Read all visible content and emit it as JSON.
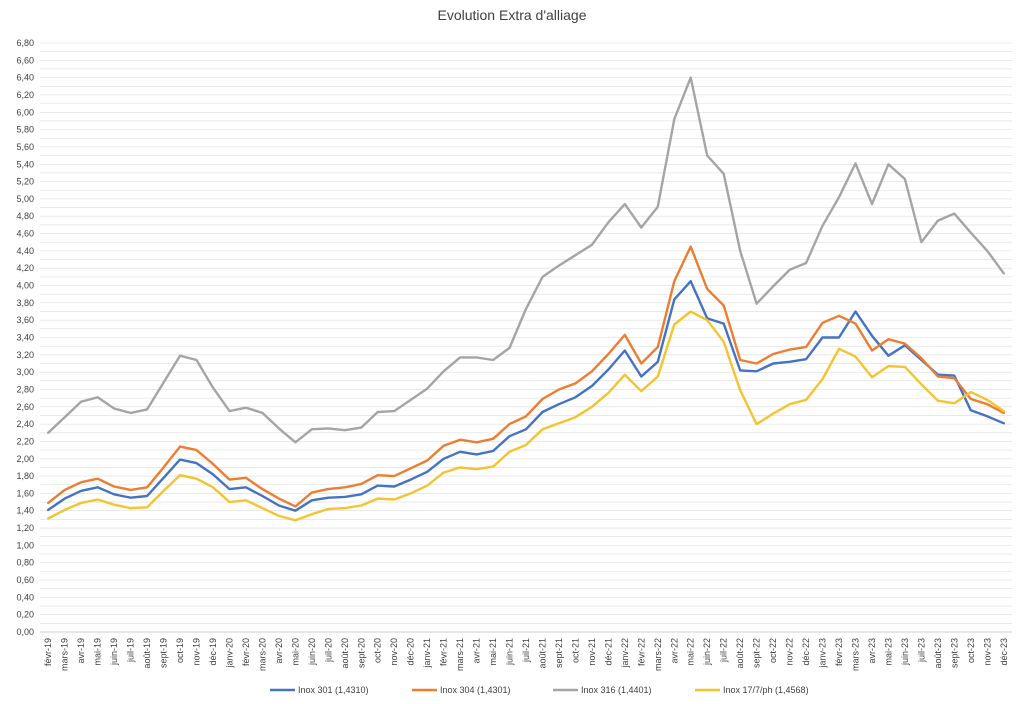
{
  "chart_data": {
    "type": "line",
    "title": "Evolution  Extra d'alliage",
    "xlabel": "",
    "ylabel": "",
    "ylim": [
      0,
      6.8
    ],
    "ytick_step": 0.1,
    "ylabel_step": 0.2,
    "grid": true,
    "legend_position": "bottom",
    "categories": [
      "févr-19",
      "mars-19",
      "avr-19",
      "mai-19",
      "juin-19",
      "juil-19",
      "août-19",
      "sept-19",
      "oct-19",
      "nov-19",
      "déc-19",
      "janv-20",
      "févr-20",
      "mars-20",
      "avr-20",
      "mai-20",
      "juin-20",
      "juil-20",
      "août-20",
      "sept-20",
      "oct-20",
      "nov-20",
      "déc-20",
      "janv-21",
      "févr-21",
      "mars-21",
      "avr-21",
      "mai-21",
      "juin-21",
      "juil-21",
      "août-21",
      "sept-21",
      "oct-21",
      "nov-21",
      "déc-21",
      "janv-22",
      "févr-22",
      "mars-22",
      "avr-22",
      "mai-22",
      "juin-22",
      "juil-22",
      "août-22",
      "sept-22",
      "oct-22",
      "nov-22",
      "déc-22",
      "janv-23",
      "févr-23",
      "mars-23",
      "avr-23",
      "mai-23",
      "juin-23",
      "juil-23",
      "août-23",
      "sept-23",
      "oct-23",
      "nov-23",
      "déc-23"
    ],
    "series": [
      {
        "name": "Inox 301 (1,4310)",
        "color": "#4472C4",
        "values": [
          1.41,
          1.54,
          1.63,
          1.67,
          1.59,
          1.55,
          1.57,
          1.78,
          1.99,
          1.95,
          1.82,
          1.65,
          1.67,
          1.57,
          1.46,
          1.4,
          1.52,
          1.55,
          1.56,
          1.59,
          1.69,
          1.68,
          1.76,
          1.85,
          2.0,
          2.08,
          2.05,
          2.09,
          2.26,
          2.34,
          2.54,
          2.63,
          2.71,
          2.84,
          3.03,
          3.25,
          2.95,
          3.12,
          3.84,
          4.05,
          3.62,
          3.56,
          3.02,
          3.01,
          3.1,
          3.12,
          3.15,
          3.4,
          3.4,
          3.7,
          3.42,
          3.19,
          3.31,
          3.14,
          2.97,
          2.96,
          2.56,
          2.49,
          2.41
        ]
      },
      {
        "name": "Inox 304 (1,4301)",
        "color": "#ED7D31",
        "values": [
          1.49,
          1.64,
          1.73,
          1.77,
          1.68,
          1.64,
          1.67,
          1.9,
          2.14,
          2.1,
          1.94,
          1.76,
          1.78,
          1.65,
          1.54,
          1.45,
          1.61,
          1.65,
          1.67,
          1.71,
          1.81,
          1.8,
          1.89,
          1.98,
          2.15,
          2.22,
          2.19,
          2.23,
          2.4,
          2.49,
          2.69,
          2.8,
          2.87,
          3.01,
          3.21,
          3.43,
          3.1,
          3.29,
          4.05,
          4.45,
          3.96,
          3.77,
          3.14,
          3.1,
          3.21,
          3.26,
          3.29,
          3.57,
          3.65,
          3.56,
          3.25,
          3.38,
          3.33,
          3.16,
          2.95,
          2.93,
          2.69,
          2.63,
          2.53
        ]
      },
      {
        "name": "Inox 316 (1,4401)",
        "color": "#A5A5A5",
        "values": [
          2.3,
          2.48,
          2.66,
          2.71,
          2.58,
          2.53,
          2.57,
          2.88,
          3.19,
          3.14,
          2.82,
          2.55,
          2.59,
          2.53,
          2.35,
          2.19,
          2.34,
          2.35,
          2.33,
          2.36,
          2.54,
          2.55,
          2.68,
          2.81,
          3.01,
          3.17,
          3.17,
          3.14,
          3.28,
          3.73,
          4.1,
          4.23,
          4.35,
          4.47,
          4.73,
          4.94,
          4.67,
          4.91,
          5.92,
          6.4,
          5.5,
          5.29,
          4.4,
          3.79,
          3.99,
          4.18,
          4.26,
          4.69,
          5.02,
          5.41,
          4.94,
          5.4,
          5.23,
          4.5,
          4.75,
          4.83,
          4.61,
          4.4,
          4.14
        ]
      },
      {
        "name": "Inox 17/7/ph (1,4568)",
        "color": "#F4C430",
        "values": [
          1.31,
          1.41,
          1.49,
          1.53,
          1.47,
          1.43,
          1.44,
          1.63,
          1.81,
          1.77,
          1.67,
          1.5,
          1.52,
          1.43,
          1.34,
          1.29,
          1.36,
          1.42,
          1.43,
          1.46,
          1.54,
          1.53,
          1.6,
          1.69,
          1.84,
          1.9,
          1.88,
          1.91,
          2.08,
          2.16,
          2.34,
          2.41,
          2.48,
          2.6,
          2.76,
          2.97,
          2.78,
          2.95,
          3.55,
          3.7,
          3.6,
          3.35,
          2.79,
          2.4,
          2.52,
          2.63,
          2.68,
          2.92,
          3.27,
          3.18,
          2.94,
          3.07,
          3.06,
          2.86,
          2.67,
          2.64,
          2.77,
          2.68,
          2.55
        ]
      }
    ]
  }
}
